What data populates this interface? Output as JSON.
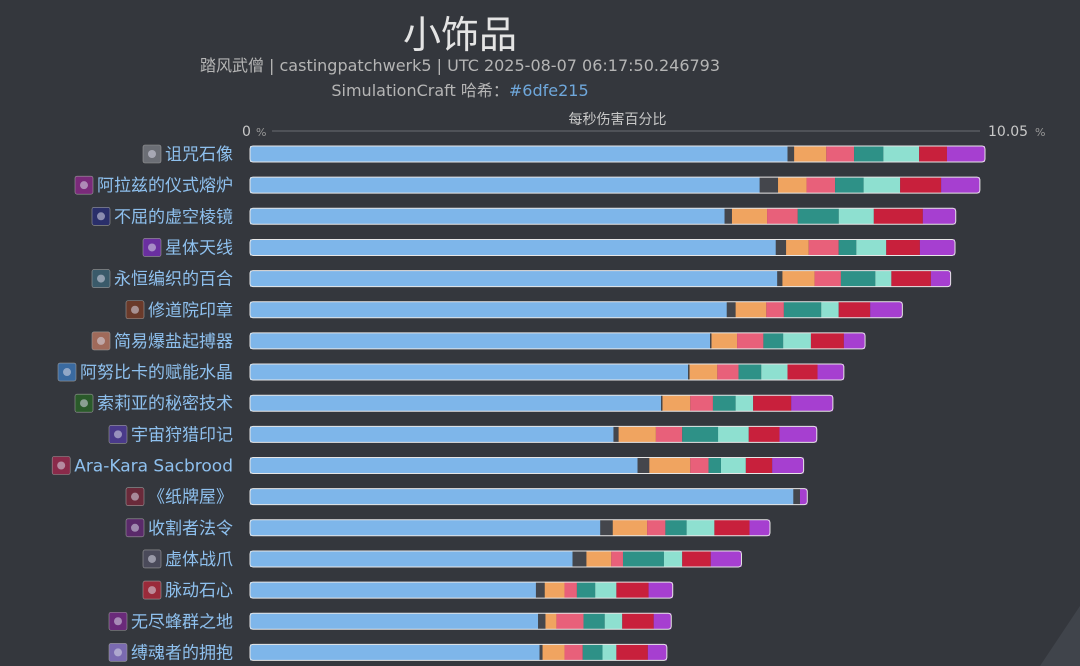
{
  "title": "小饰品",
  "subtitle_line1": "踏风武僧 | castingpatchwerk5 | UTC 2025-08-07 06:17:50.246793",
  "subtitle_line2_prefix": "SimulationCraft 哈希：",
  "subtitle_line2_hash": "#6dfe215",
  "chart_data": {
    "type": "bar",
    "orientation": "horizontal",
    "stacked": true,
    "xlabel": "每秒伤害百分比",
    "x_min_label": "0",
    "x_max_label": "10.05",
    "x_unit": "%",
    "xlim": [
      0,
      10.05
    ],
    "categories": [
      "诅咒石像",
      "阿拉兹的仪式熔炉",
      "不屈的虚空棱镜",
      "星体天线",
      "永恒编织的百合",
      "修道院印章",
      "简易爆盐起搏器",
      "阿努比卡的赋能水晶",
      "索莉亚的秘密技术",
      "宇宙狩猎印记",
      "Ara-Kara Sacbrood",
      "《纸牌屋》",
      "收割者法令",
      "虚体战爪",
      "脉动石心",
      "无尽蜂群之地",
      "缚魂者的拥抱"
    ],
    "icon_names": [
      "cursed-stone-idol-icon",
      "arazs-ritual-forge-icon",
      "unyielding-void-prism-icon",
      "astral-antenna-icon",
      "eternal-woven-lily-icon",
      "monastery-seal-icon",
      "simple-salt-pacemaker-icon",
      "anubikkaj-empowered-crystal-icon",
      "soleahs-secret-technique-icon",
      "cosmic-hunt-mark-icon",
      "ara-kara-sacbrood-icon",
      "house-of-cards-icon",
      "reapers-decree-icon",
      "ethereal-claw-icon",
      "pulsing-stoneheart-icon",
      "endless-swarm-land-icon",
      "soulbinders-embrace-icon"
    ],
    "icon_colors": [
      "#6b6e75",
      "#7a2a7a",
      "#2a2f6a",
      "#6a2fa0",
      "#3a5a6a",
      "#6a3a2a",
      "#a06a5a",
      "#3a6aa0",
      "#2a5a2a",
      "#4a3a8a",
      "#8a2a4a",
      "#6a2a3a",
      "#5a2a6a",
      "#4a4a5a",
      "#9a2a3a",
      "#6a2a7a",
      "#7a6ab0"
    ],
    "series": [
      {
        "name": "",
        "color": "#7eb6ea",
        "values": [
          7.35,
          6.97,
          6.49,
          7.19,
          7.21,
          6.52,
          6.29,
          5.99,
          5.62,
          4.97,
          5.3,
          7.43,
          4.79,
          4.41,
          3.91,
          3.94,
          3.96
        ]
      },
      {
        "name": "",
        "color": "#44464c",
        "values": [
          0.09,
          0.25,
          0.1,
          0.14,
          0.07,
          0.12,
          0.02,
          0.02,
          0.02,
          0.07,
          0.16,
          0.09,
          0.17,
          0.19,
          0.12,
          0.1,
          0.04
        ]
      },
      {
        "name": "",
        "color": "#f0a460",
        "values": [
          0.44,
          0.39,
          0.48,
          0.31,
          0.44,
          0.42,
          0.35,
          0.38,
          0.38,
          0.51,
          0.56,
          0,
          0.47,
          0.34,
          0.27,
          0.15,
          0.3
        ]
      },
      {
        "name": "",
        "color": "#e8607a",
        "values": [
          0.38,
          0.39,
          0.42,
          0.41,
          0.36,
          0.24,
          0.36,
          0.29,
          0.31,
          0.36,
          0.25,
          0,
          0.25,
          0.16,
          0.17,
          0.37,
          0.25
        ]
      },
      {
        "name": "",
        "color": "#2e9187",
        "values": [
          0.4,
          0.39,
          0.56,
          0.24,
          0.47,
          0.51,
          0.27,
          0.31,
          0.31,
          0.49,
          0.17,
          0,
          0.29,
          0.56,
          0.25,
          0.29,
          0.27
        ]
      },
      {
        "name": "",
        "color": "#8ee0d0",
        "values": [
          0.49,
          0.5,
          0.48,
          0.41,
          0.22,
          0.24,
          0.38,
          0.36,
          0.24,
          0.42,
          0.34,
          0,
          0.38,
          0.25,
          0.29,
          0.24,
          0.19
        ]
      },
      {
        "name": "",
        "color": "#c8203c",
        "values": [
          0.38,
          0.56,
          0.67,
          0.46,
          0.54,
          0.43,
          0.45,
          0.41,
          0.52,
          0.42,
          0.36,
          0,
          0.48,
          0.39,
          0.44,
          0.43,
          0.43
        ]
      },
      {
        "name": "",
        "color": "#a63fd0",
        "values": [
          0.52,
          0.53,
          0.45,
          0.48,
          0.27,
          0.44,
          0.29,
          0.36,
          0.57,
          0.51,
          0.43,
          0.1,
          0.28,
          0.42,
          0.33,
          0.24,
          0.26
        ]
      }
    ]
  }
}
